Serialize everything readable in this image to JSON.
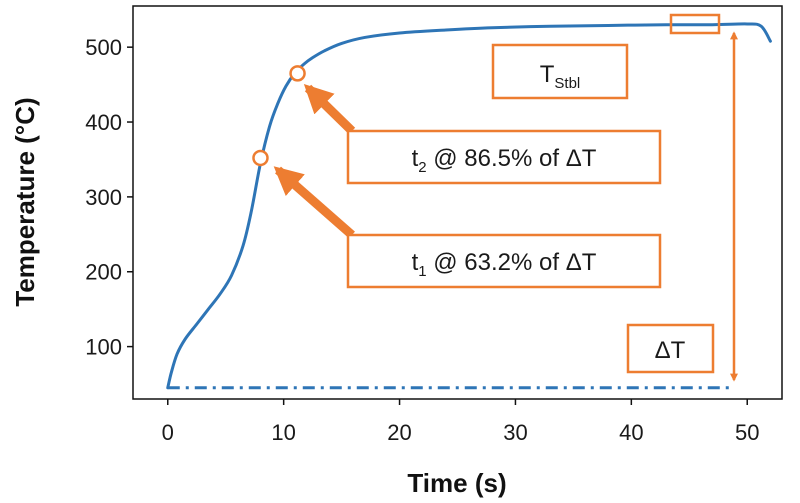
{
  "chart_data": {
    "type": "line",
    "xlabel": "Time (s)",
    "ylabel": "Temperature (°C)",
    "xlim": [
      -3,
      53
    ],
    "ylim": [
      30,
      555
    ],
    "x_ticks": [
      0,
      10,
      20,
      30,
      40,
      50
    ],
    "y_ticks": [
      100,
      200,
      300,
      400,
      500
    ],
    "grid": false,
    "series": [
      {
        "style": "solid",
        "color": "#2e75b6",
        "x": [
          0,
          0.3,
          0.8,
          1.5,
          2.5,
          3.5,
          4.5,
          5.5,
          6.5,
          7.2,
          8,
          8.8,
          9.5,
          10.2,
          11,
          11.8,
          12.5,
          13.5,
          15,
          17,
          20,
          24,
          28,
          33,
          38,
          43,
          47,
          50,
          51.2,
          52
        ],
        "y": [
          45,
          65,
          90,
          110,
          130,
          150,
          170,
          195,
          235,
          280,
          345,
          395,
          425,
          448,
          466,
          478,
          486,
          495,
          505,
          513,
          519,
          523,
          526,
          528,
          529,
          530,
          530,
          531,
          528,
          508
        ]
      },
      {
        "style": "dashdot",
        "color": "#2e75b6",
        "x": [
          0,
          48.5
        ],
        "y": [
          45,
          45
        ]
      }
    ],
    "points": [
      {
        "x": 8,
        "y": 352,
        "marker": "open-circle"
      },
      {
        "x": 11.2,
        "y": 465,
        "marker": "open-circle"
      }
    ],
    "annotations": [
      {
        "id": "tstbl",
        "main": "T",
        "sub": "Stbl",
        "after": ""
      },
      {
        "id": "t2",
        "main": "t",
        "sub": "2",
        "after": " @ 86.5% of ΔT"
      },
      {
        "id": "t1",
        "main": "t",
        "sub": "1",
        "after": " @ 63.2% of ΔT"
      },
      {
        "id": "dT",
        "main": "ΔT",
        "sub": "",
        "after": ""
      }
    ],
    "accent_color": "#ed7d31"
  }
}
